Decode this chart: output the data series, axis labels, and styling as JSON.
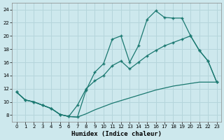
{
  "xlabel": "Humidex (Indice chaleur)",
  "bg_color": "#cde8ed",
  "grid_color": "#b5d5db",
  "line_color": "#1a7870",
  "xlim_min": -0.5,
  "xlim_max": 23.5,
  "ylim_min": 7.0,
  "ylim_max": 25.0,
  "xticks": [
    0,
    1,
    2,
    3,
    4,
    5,
    6,
    7,
    8,
    9,
    10,
    11,
    12,
    13,
    14,
    15,
    16,
    17,
    18,
    19,
    20,
    21,
    22,
    23
  ],
  "yticks": [
    8,
    10,
    12,
    14,
    16,
    18,
    20,
    22,
    24
  ],
  "curve_upper_x": [
    0,
    1,
    2,
    3,
    4,
    5,
    6,
    7,
    8,
    9,
    10,
    11,
    12,
    13,
    14,
    15,
    16,
    17,
    18,
    19,
    20,
    21,
    22,
    23
  ],
  "curve_upper_y": [
    11.5,
    10.3,
    10.0,
    9.5,
    9.0,
    8.1,
    7.8,
    7.7,
    11.8,
    14.5,
    15.8,
    19.5,
    20.0,
    16.0,
    18.5,
    22.5,
    23.8,
    22.8,
    22.7,
    22.7,
    20.0,
    17.8,
    16.2,
    13.0
  ],
  "curve_middle_x": [
    0,
    1,
    2,
    3,
    4,
    5,
    6,
    7,
    8,
    9,
    10,
    11,
    12,
    13,
    14,
    15,
    16,
    17,
    18,
    19,
    20,
    21,
    22,
    23
  ],
  "curve_middle_y": [
    11.5,
    10.3,
    10.0,
    9.5,
    9.0,
    8.1,
    7.8,
    9.5,
    12.0,
    13.2,
    14.0,
    15.5,
    16.2,
    15.0,
    16.0,
    17.0,
    17.8,
    18.5,
    19.0,
    19.5,
    20.0,
    17.8,
    16.2,
    13.0
  ],
  "curve_lower_x": [
    0,
    1,
    2,
    3,
    4,
    5,
    6,
    7,
    8,
    9,
    10,
    11,
    12,
    13,
    14,
    15,
    16,
    17,
    18,
    19,
    20,
    21,
    22,
    23
  ],
  "curve_lower_y": [
    11.5,
    10.3,
    10.0,
    9.5,
    9.0,
    8.1,
    7.8,
    7.7,
    8.2,
    8.8,
    9.3,
    9.8,
    10.2,
    10.6,
    11.0,
    11.4,
    11.8,
    12.1,
    12.4,
    12.6,
    12.8,
    13.0,
    13.0,
    13.0
  ]
}
